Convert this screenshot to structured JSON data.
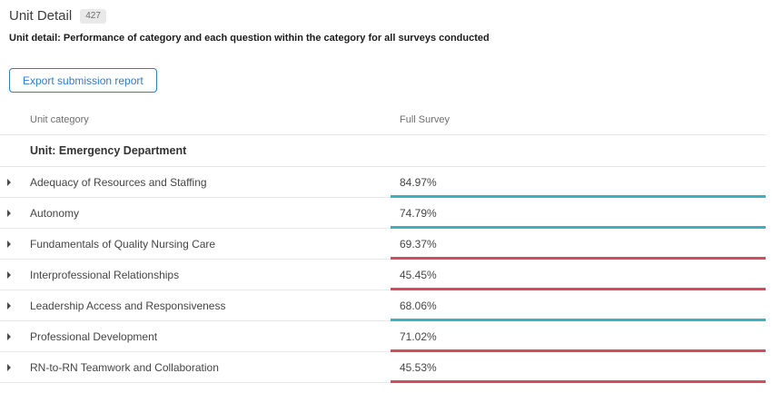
{
  "page": {
    "title": "Unit Detail",
    "badge": "427",
    "description": "Unit detail: Performance of category and each question within the category for all surveys conducted",
    "export_button_label": "Export submission report"
  },
  "table": {
    "columns": [
      "Unit category",
      "Full Survey"
    ],
    "group_header": "Unit: Emergency Department",
    "rows": [
      {
        "category": "Adequacy of Resources and Staffing",
        "full_survey": "84.97%",
        "status": "positive"
      },
      {
        "category": "Autonomy",
        "full_survey": "74.79%",
        "status": "positive"
      },
      {
        "category": "Fundamentals of Quality Nursing Care",
        "full_survey": "69.37%",
        "status": "negative"
      },
      {
        "category": "Interprofessional Relationships",
        "full_survey": "45.45%",
        "status": "negative"
      },
      {
        "category": "Leadership Access and Responsiveness",
        "full_survey": "68.06%",
        "status": "positive"
      },
      {
        "category": "Professional Development",
        "full_survey": "71.02%",
        "status": "negative"
      },
      {
        "category": "RN-to-RN Teamwork and Collaboration",
        "full_survey": "45.53%",
        "status": "negative"
      }
    ]
  },
  "colors": {
    "positive": "#3ab3ba",
    "negative": "#d64a62",
    "accent_blue": "#2d7dd2"
  }
}
